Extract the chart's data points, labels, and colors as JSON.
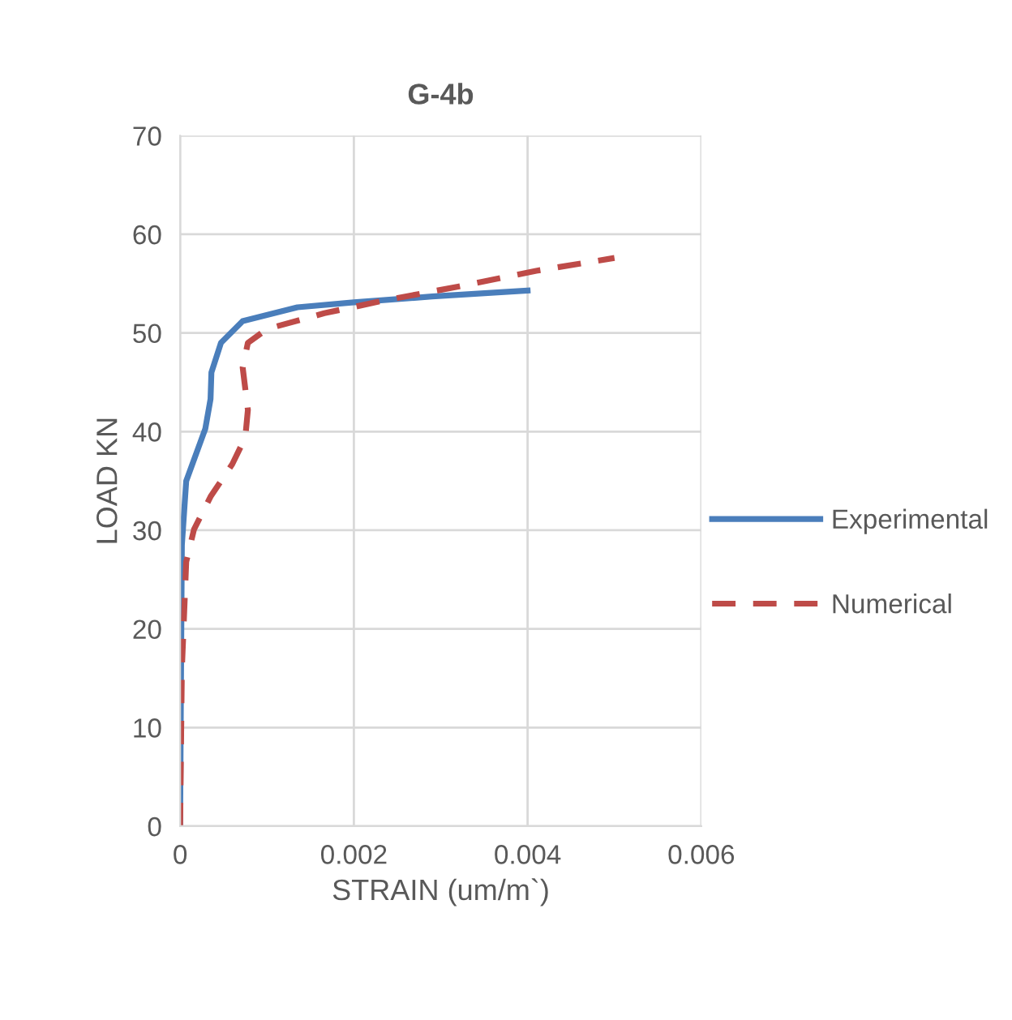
{
  "chart_data": {
    "type": "line",
    "title": "G-4b",
    "xlabel": "STRAIN (um/m`)",
    "ylabel": "LOAD KN",
    "xlim": [
      0,
      0.006
    ],
    "xticks": [
      0,
      0.002,
      0.004,
      0.006
    ],
    "ylim": [
      0,
      70
    ],
    "yticks": [
      0,
      10,
      20,
      30,
      40,
      50,
      60,
      70
    ],
    "grid": true,
    "legend": "right",
    "marker": "none",
    "series": [
      {
        "name": "Experimental",
        "color": "#4a7ebb",
        "line_style": "solid",
        "x": [
          0,
          1e-05,
          2e-05,
          7e-05,
          0.00029,
          0.00035,
          0.00036,
          0.00047,
          0.00072,
          0.00135,
          0.002,
          0.0029,
          0.004
        ],
        "values": [
          0,
          15,
          28.5,
          35,
          40.3,
          43.3,
          46,
          49,
          51.2,
          52.6,
          53.1,
          53.7,
          54.3
        ]
      },
      {
        "name": "Numerical",
        "color": "#be4b48",
        "line_style": "dashed",
        "x": [
          0,
          1e-05,
          2e-05,
          7e-05,
          0.00016,
          0.00035,
          0.0006,
          0.00075,
          0.00078,
          0.00072,
          0.00078,
          0.001,
          0.00166,
          0.0023,
          0.0032,
          0.0041,
          0.005
        ],
        "values": [
          0,
          8,
          15.9,
          26.8,
          30.1,
          33.4,
          36.7,
          39.4,
          42.2,
          46.5,
          49,
          50.4,
          52,
          53.2,
          54.7,
          56.3,
          57.6
        ]
      }
    ]
  }
}
